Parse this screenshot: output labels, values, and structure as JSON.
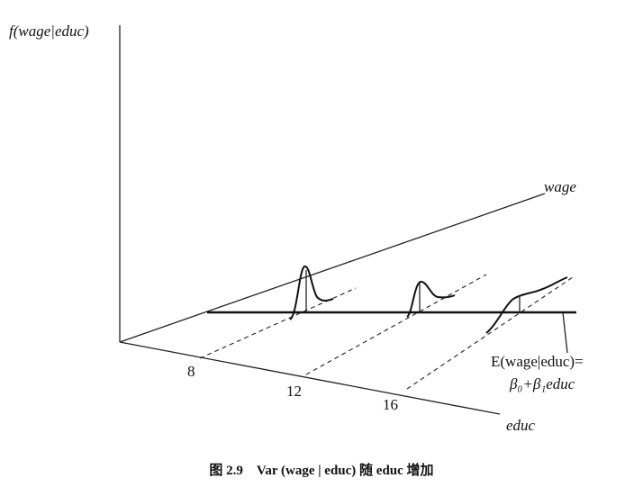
{
  "figure": {
    "y_axis_label": "f(wage|educ)",
    "wage_axis_label": "wage",
    "educ_axis_label": "educ",
    "educ_ticks": [
      "8",
      "12",
      "16"
    ],
    "regression_label": [
      "E(wage|educ)=",
      "β₀+β₁educ"
    ],
    "caption": "图 2.9　Var (wage | educ) 随 educ 增加"
  }
}
